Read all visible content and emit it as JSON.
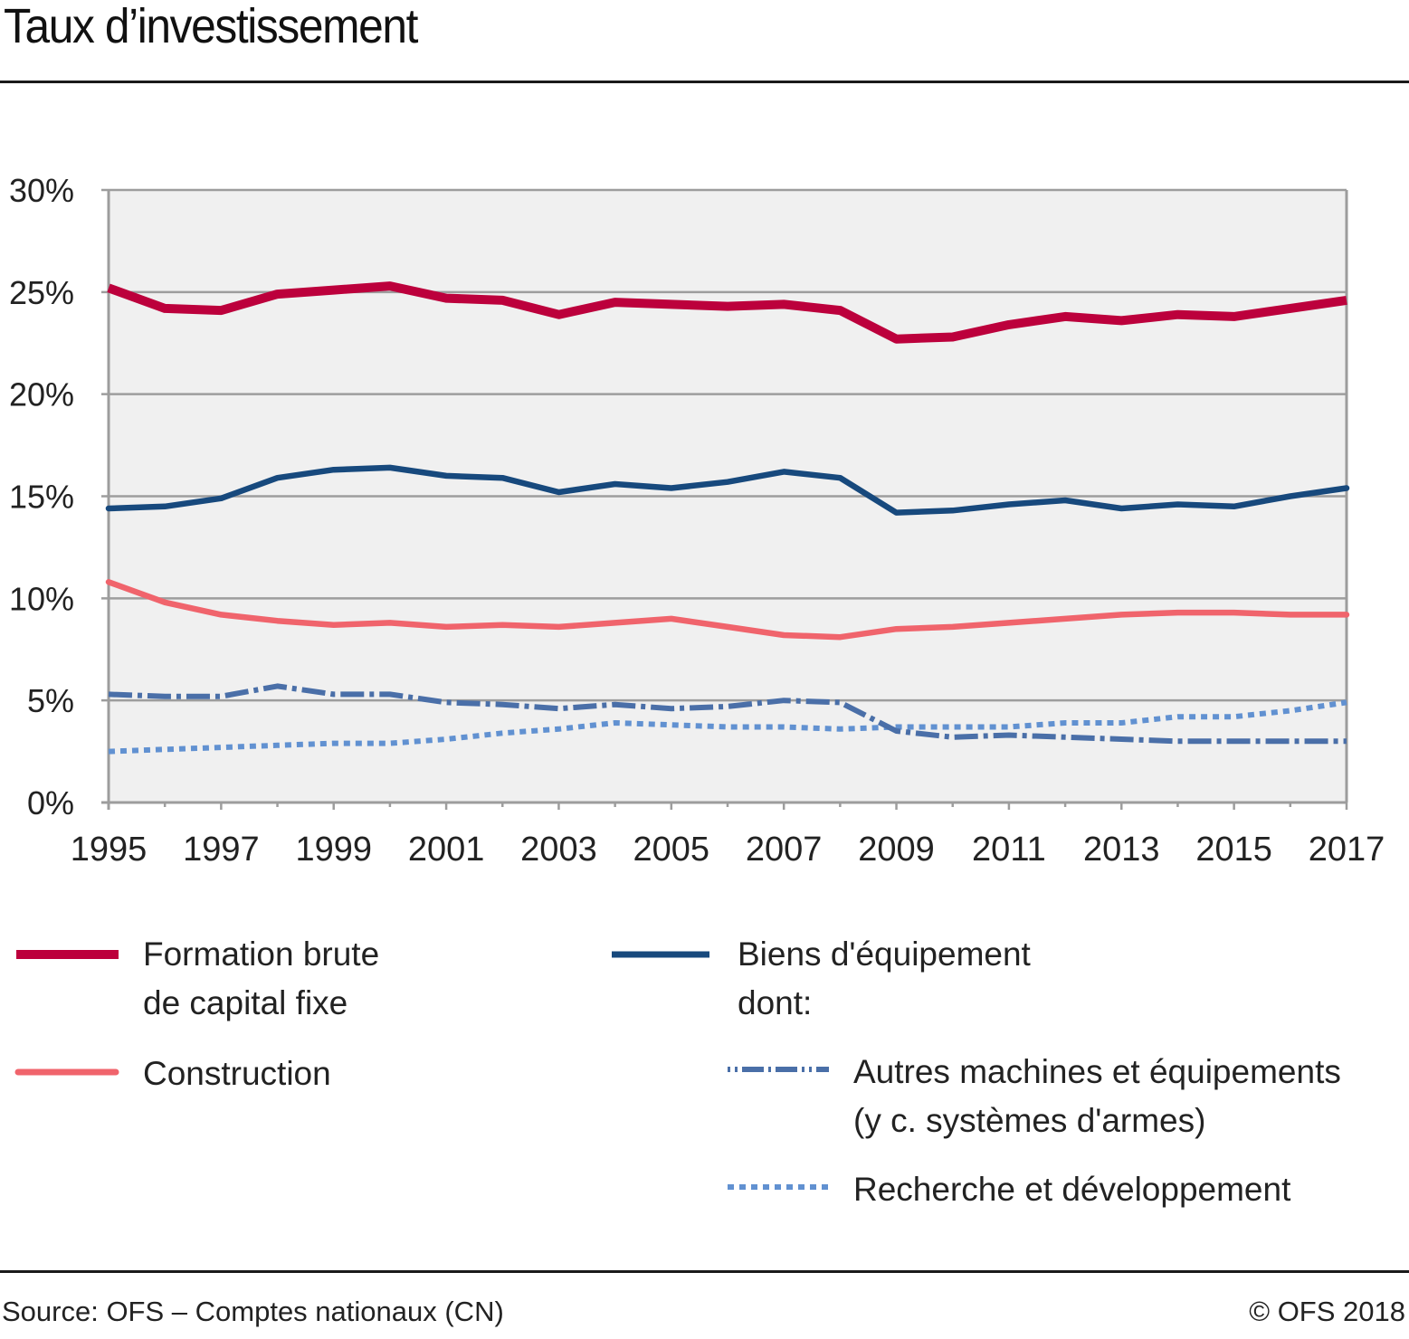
{
  "header": {
    "title": "Taux d’investissement"
  },
  "footer": {
    "source": "Source: OFS – Comptes nationaux (CN)",
    "copyright": "© OFS 2018"
  },
  "legend": {
    "fbcf_line1": "Formation brute",
    "fbcf_line2": "de capital fixe",
    "construction": "Construction",
    "biens_line1": "Biens d'équipement",
    "biens_line2": "dont:",
    "autres_line1": "Autres machines et équipements",
    "autres_line2": "(y c. systèmes d'armes)",
    "rd": "Recherche et développement"
  },
  "chart_data": {
    "type": "line",
    "title": "Taux d’investissement",
    "xlabel": "",
    "ylabel": "",
    "ylim": [
      0,
      30
    ],
    "yticks": [
      0,
      5,
      10,
      15,
      20,
      25,
      30
    ],
    "ytick_labels": [
      "0%",
      "5%",
      "10%",
      "15%",
      "20%",
      "25%",
      "30%"
    ],
    "xtick_labels": [
      "1995",
      "1997",
      "1999",
      "2001",
      "2003",
      "2005",
      "2007",
      "2009",
      "2011",
      "2013",
      "2015",
      "2017"
    ],
    "grid": true,
    "legend_position": "bottom",
    "x": [
      1995,
      1996,
      1997,
      1998,
      1999,
      2000,
      2001,
      2002,
      2003,
      2004,
      2005,
      2006,
      2007,
      2008,
      2009,
      2010,
      2011,
      2012,
      2013,
      2014,
      2015,
      2016,
      2017
    ],
    "series": [
      {
        "key": "fbcf",
        "name": "Formation brute de capital fixe",
        "color": "#bc003c",
        "style": "solid-thick",
        "values": [
          25.2,
          24.2,
          24.1,
          24.9,
          25.1,
          25.3,
          24.7,
          24.6,
          23.9,
          24.5,
          24.4,
          24.3,
          24.4,
          24.1,
          22.7,
          22.8,
          23.4,
          23.8,
          23.6,
          23.9,
          23.8,
          24.2,
          24.6
        ]
      },
      {
        "key": "biens",
        "name": "Biens d'équipement",
        "color": "#17497d",
        "style": "solid",
        "values": [
          14.4,
          14.5,
          14.9,
          15.9,
          16.3,
          16.4,
          16.0,
          15.9,
          15.2,
          15.6,
          15.4,
          15.7,
          16.2,
          15.9,
          14.2,
          14.3,
          14.6,
          14.8,
          14.4,
          14.6,
          14.5,
          15.0,
          15.4
        ]
      },
      {
        "key": "construction",
        "name": "Construction",
        "color": "#f0646c",
        "style": "solid",
        "values": [
          10.8,
          9.8,
          9.2,
          8.9,
          8.7,
          8.8,
          8.6,
          8.7,
          8.6,
          8.8,
          9.0,
          8.6,
          8.2,
          8.1,
          8.5,
          8.6,
          8.8,
          9.0,
          9.2,
          9.3,
          9.3,
          9.2,
          9.2
        ]
      },
      {
        "key": "autres",
        "name": "Autres machines et équipements (y c. systèmes d'armes)",
        "color": "#4a6fa8",
        "style": "dash-dot",
        "values": [
          5.3,
          5.2,
          5.2,
          5.7,
          5.3,
          5.3,
          4.9,
          4.8,
          4.6,
          4.8,
          4.6,
          4.7,
          5.0,
          4.9,
          3.5,
          3.2,
          3.3,
          3.2,
          3.1,
          3.0,
          3.0,
          3.0,
          3.0
        ]
      },
      {
        "key": "rd",
        "name": "Recherche et développement",
        "color": "#6191d1",
        "style": "dotted",
        "values": [
          2.5,
          2.6,
          2.7,
          2.8,
          2.9,
          2.9,
          3.1,
          3.4,
          3.6,
          3.9,
          3.8,
          3.7,
          3.7,
          3.6,
          3.7,
          3.7,
          3.7,
          3.9,
          3.9,
          4.2,
          4.2,
          4.5,
          4.9
        ]
      }
    ]
  }
}
